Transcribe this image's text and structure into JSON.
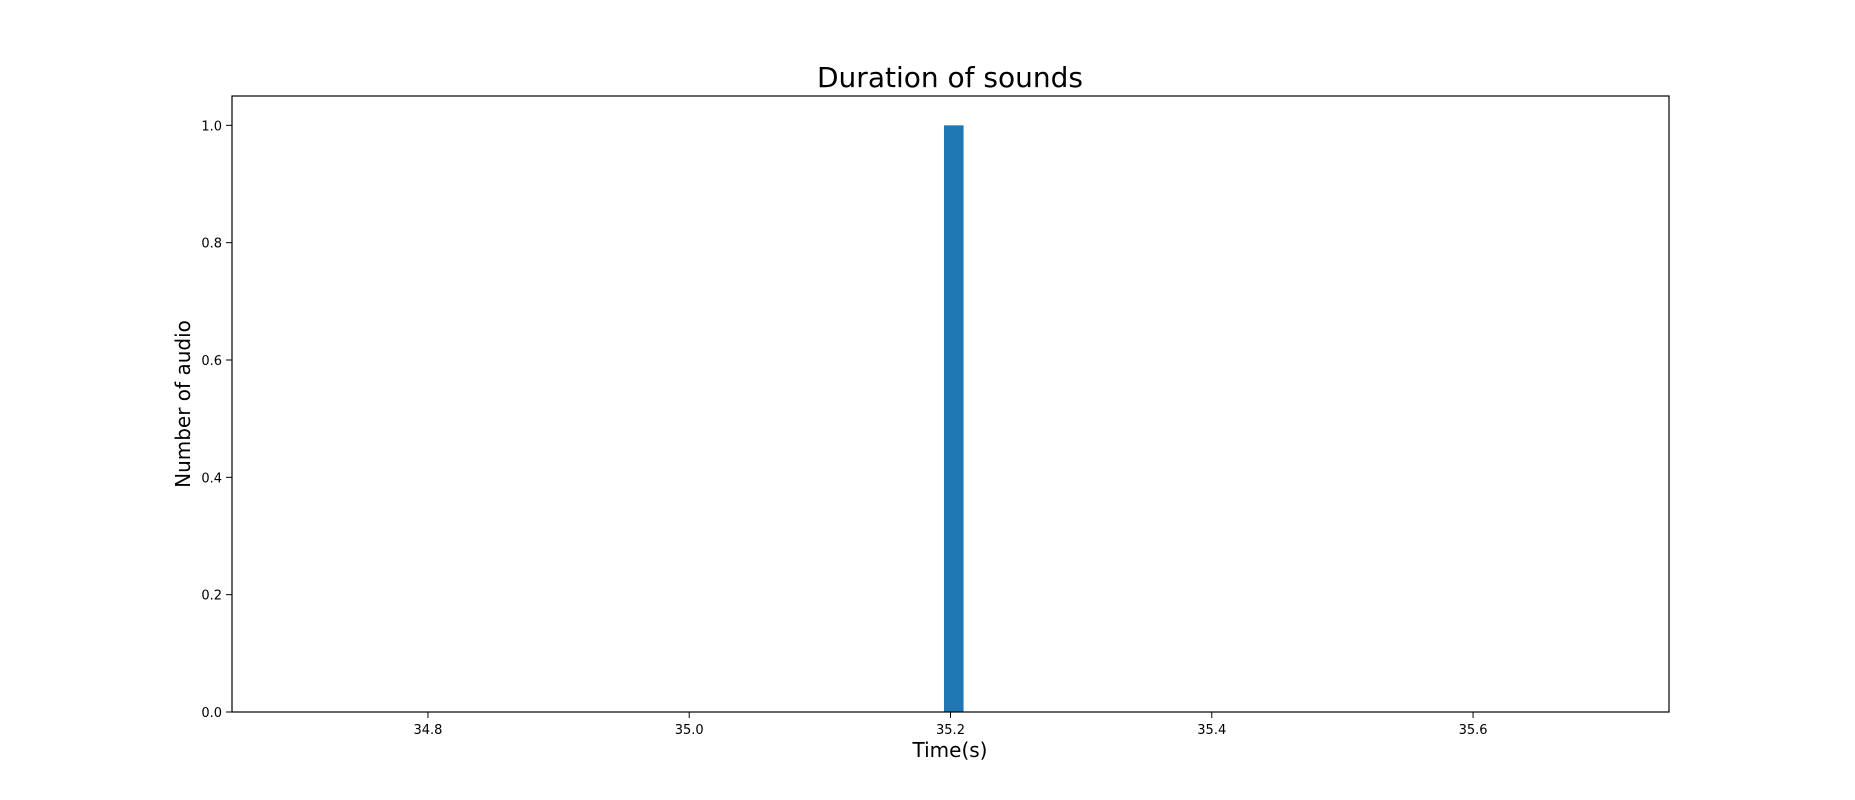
{
  "chart_data": {
    "type": "bar",
    "title": "Duration of sounds",
    "xlabel": "Time(s)",
    "ylabel": "Number of audio",
    "xlim": [
      34.65,
      35.75
    ],
    "ylim": [
      0,
      1.05
    ],
    "xticks": [
      "34.8",
      "35.0",
      "35.2",
      "35.4",
      "35.6"
    ],
    "yticks": [
      "0.0",
      "0.2",
      "0.4",
      "0.6",
      "0.8",
      "1.0"
    ],
    "bars": [
      {
        "x_start": 35.195,
        "x_end": 35.21,
        "value": 1
      }
    ],
    "grid": false,
    "legend": false,
    "color": "#1f77b4"
  }
}
